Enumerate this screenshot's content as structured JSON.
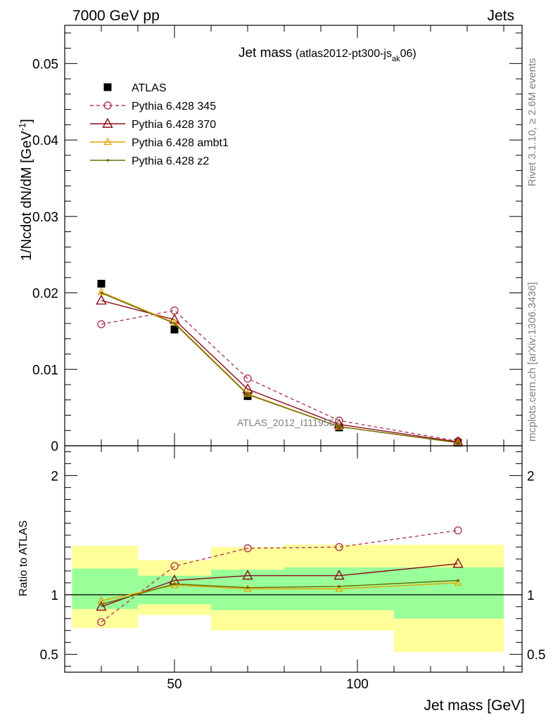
{
  "header": {
    "left": "7000 GeV pp",
    "right": "Jets"
  },
  "side_labels": {
    "top": "Rivet 3.1.10, ≥ 2.6M events",
    "bottom": "mcplots.cern.ch [arXiv:1306.3436]"
  },
  "chart_data": [
    {
      "type": "scatter",
      "title_main": "Jet mass",
      "title_sub_pre": "(atlas2012-pt300-js",
      "title_sub_subscript": "ak",
      "title_sub_post": "06)",
      "ylabel": "1/Ncdot dN/dM [GeV",
      "ylabel_superscript": "-1",
      "ylabel_close": "]",
      "watermark": "ATLAS_2012_I1119557",
      "xlim": [
        20,
        145
      ],
      "ylim": [
        0,
        0.055
      ],
      "y_ticks": [
        "0",
        "0.01",
        "0.02",
        "0.03",
        "0.04",
        "0.05"
      ],
      "y_tick_values": [
        0,
        0.01,
        0.02,
        0.03,
        0.04,
        0.05
      ],
      "legend_position": "top-left",
      "series": [
        {
          "name": "ATLAS",
          "color": "#000000",
          "marker": "square",
          "line": "none",
          "x": [
            30,
            50,
            70,
            95,
            127.5
          ],
          "y": [
            0.0212,
            0.0152,
            0.0065,
            0.0024,
            0.0004
          ]
        },
        {
          "name": "Pythia 6.428 345",
          "color": "#b03a5a",
          "marker": "circle",
          "line": "dashed",
          "x": [
            30,
            50,
            70,
            95,
            127.5
          ],
          "y": [
            0.0159,
            0.0177,
            0.0088,
            0.0033,
            0.0006
          ]
        },
        {
          "name": "Pythia 6.428 370",
          "color": "#8b0a1a",
          "marker": "triangle",
          "line": "solid",
          "x": [
            30,
            50,
            70,
            95,
            127.5
          ],
          "y": [
            0.019,
            0.0165,
            0.0074,
            0.0028,
            0.0005
          ]
        },
        {
          "name": "Pythia 6.428 ambt1",
          "color": "#e6a000",
          "marker": "triangle-small",
          "line": "solid",
          "x": [
            30,
            50,
            70,
            95,
            127.5
          ],
          "y": [
            0.0201,
            0.0161,
            0.0068,
            0.0025,
            0.0004
          ]
        },
        {
          "name": "Pythia 6.428 z2",
          "color": "#6b6b00",
          "marker": "dot",
          "line": "solid",
          "x": [
            30,
            50,
            70,
            95,
            127.5
          ],
          "y": [
            0.02,
            0.016,
            0.0067,
            0.0025,
            0.0004
          ]
        }
      ]
    },
    {
      "type": "scatter",
      "xlabel": "Jet mass [GeV]",
      "ylabel": "Ratio to ATLAS",
      "xlim": [
        20,
        145
      ],
      "ylim": [
        0.35,
        2.25
      ],
      "x_ticks": [
        "50",
        "100"
      ],
      "x_tick_values": [
        50,
        100
      ],
      "y_ticks": [
        "0.5",
        "1",
        "2"
      ],
      "y_tick_values": [
        0.5,
        1,
        2
      ],
      "reference_line": 1,
      "bands": {
        "bins": [
          [
            22,
            40
          ],
          [
            40,
            60
          ],
          [
            60,
            80
          ],
          [
            80,
            110
          ],
          [
            110,
            140
          ]
        ],
        "yellow": [
          [
            0.72,
            1.41
          ],
          [
            0.83,
            1.29
          ],
          [
            0.7,
            1.4
          ],
          [
            0.7,
            1.42
          ],
          [
            0.52,
            1.42
          ]
        ],
        "green": [
          [
            0.88,
            1.22
          ],
          [
            0.92,
            1.16
          ],
          [
            0.87,
            1.21
          ],
          [
            0.87,
            1.23
          ],
          [
            0.8,
            1.23
          ]
        ]
      },
      "series": [
        {
          "name": "Pythia 6.428 345",
          "color": "#b03a5a",
          "marker": "circle",
          "line": "dashed",
          "x": [
            30,
            50,
            70,
            95,
            127.5
          ],
          "y": [
            0.77,
            1.24,
            1.39,
            1.4,
            1.54
          ]
        },
        {
          "name": "Pythia 6.428 370",
          "color": "#8b0a1a",
          "marker": "triangle",
          "line": "solid",
          "x": [
            30,
            50,
            70,
            95,
            127.5
          ],
          "y": [
            0.9,
            1.12,
            1.16,
            1.16,
            1.26
          ]
        },
        {
          "name": "Pythia 6.428 ambt1",
          "color": "#e6a000",
          "marker": "triangle-small",
          "line": "solid",
          "x": [
            30,
            50,
            70,
            95,
            127.5
          ],
          "y": [
            0.95,
            1.08,
            1.05,
            1.05,
            1.1
          ]
        },
        {
          "name": "Pythia 6.428 z2",
          "color": "#6b6b00",
          "marker": "dot",
          "line": "solid",
          "x": [
            30,
            50,
            70,
            95,
            127.5
          ],
          "y": [
            0.92,
            1.09,
            1.06,
            1.07,
            1.12
          ]
        }
      ]
    }
  ]
}
